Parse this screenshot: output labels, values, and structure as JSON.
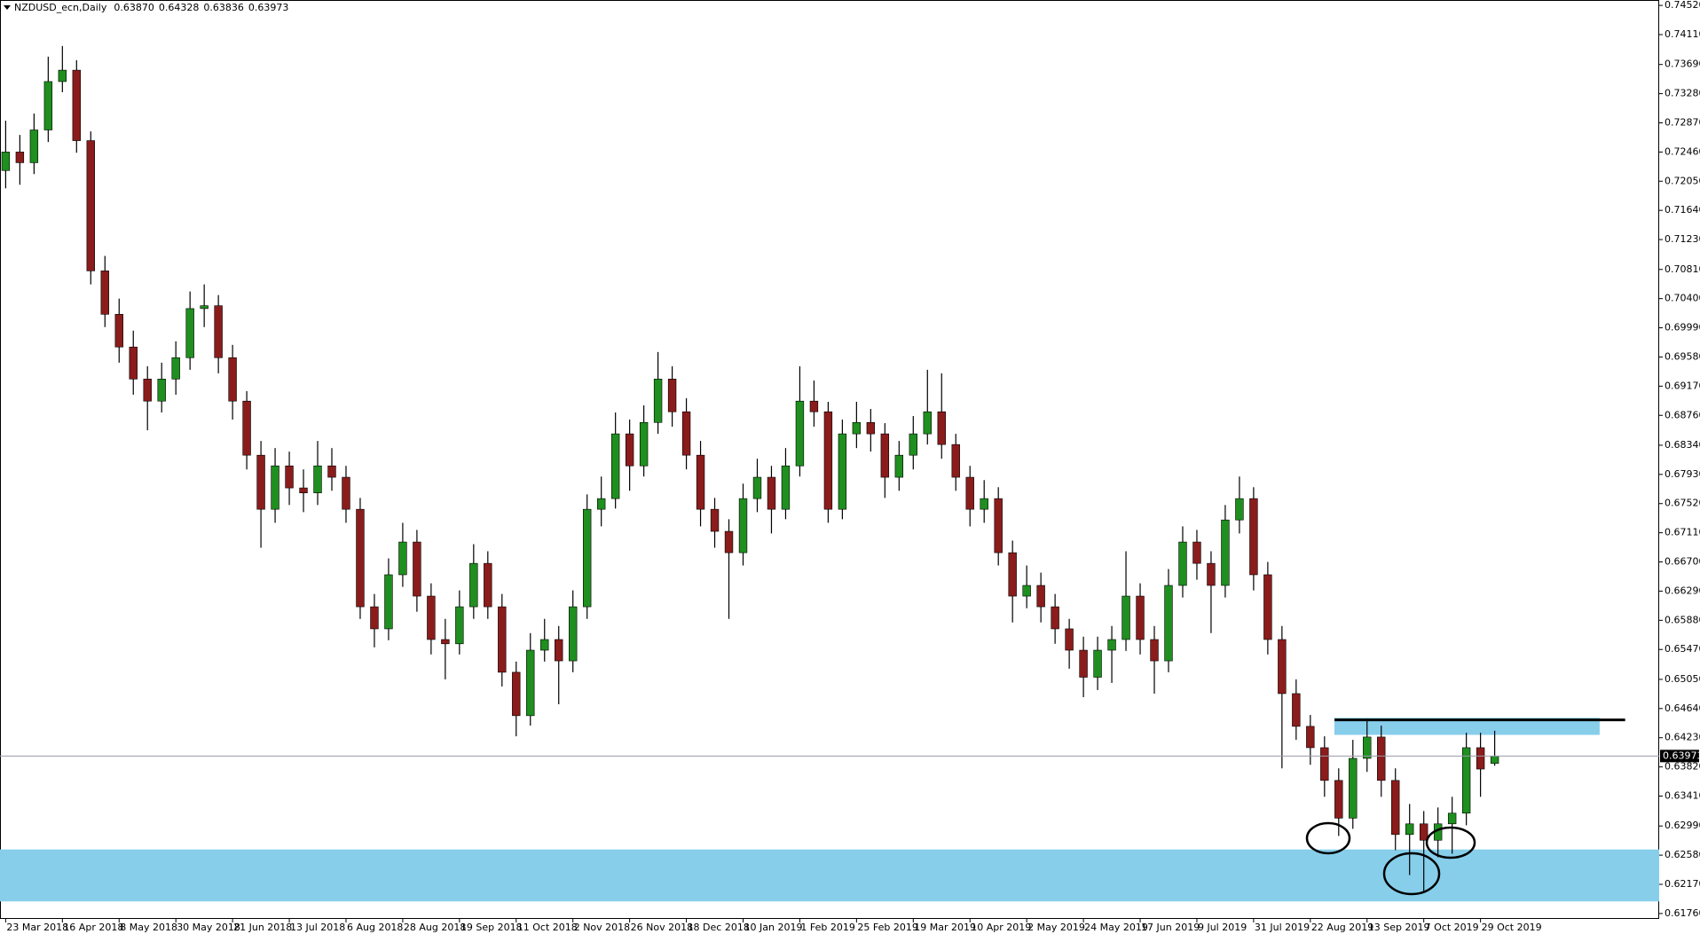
{
  "chart_data": {
    "type": "candlestick",
    "title": "NZDUSD_ecn,Daily",
    "last_quote": [
      {
        "value": 0.6387,
        "label": "0.63870"
      },
      {
        "value": 0.64328,
        "label": "0.64328"
      },
      {
        "value": 0.63836,
        "label": "0.63836"
      },
      {
        "value": 0.63973,
        "label": "0.63973"
      }
    ],
    "up_color": "#1f8f1f",
    "down_color": "#8b1c1c",
    "wick_color": "#000000",
    "xlim": [
      -0.4,
      116.6
    ],
    "ylim": [
      0.61684,
      0.74596
    ],
    "xticks": [
      {
        "value": 0,
        "label": "23 Mar 2018"
      },
      {
        "value": 4,
        "label": "16 Apr 2018"
      },
      {
        "value": 8,
        "label": "8 May 2018"
      },
      {
        "value": 12,
        "label": "30 May 2018"
      },
      {
        "value": 16,
        "label": "21 Jun 2018"
      },
      {
        "value": 20,
        "label": "13 Jul 2018"
      },
      {
        "value": 24,
        "label": "6 Aug 2018"
      },
      {
        "value": 28,
        "label": "28 Aug 2018"
      },
      {
        "value": 32,
        "label": "19 Sep 2018"
      },
      {
        "value": 36,
        "label": "11 Oct 2018"
      },
      {
        "value": 40,
        "label": "2 Nov 2018"
      },
      {
        "value": 44,
        "label": "26 Nov 2018"
      },
      {
        "value": 48,
        "label": "18 Dec 2018"
      },
      {
        "value": 52,
        "label": "10 Jan 2019"
      },
      {
        "value": 56,
        "label": "1 Feb 2019"
      },
      {
        "value": 60,
        "label": "25 Feb 2019"
      },
      {
        "value": 64,
        "label": "19 Mar 2019"
      },
      {
        "value": 68,
        "label": "10 Apr 2019"
      },
      {
        "value": 72,
        "label": "2 May 2019"
      },
      {
        "value": 76,
        "label": "24 May 2019"
      },
      {
        "value": 80,
        "label": "17 Jun 2019"
      },
      {
        "value": 84,
        "label": "9 Jul 2019"
      },
      {
        "value": 88,
        "label": "31 Jul 2019"
      },
      {
        "value": 92,
        "label": "22 Aug 2019"
      },
      {
        "value": 96,
        "label": "13 Sep 2019"
      },
      {
        "value": 100,
        "label": "7 Oct 2019"
      },
      {
        "value": 104,
        "label": "29 Oct 2019"
      }
    ],
    "yticks": [
      {
        "value": 0.7452,
        "label": "0.74520"
      },
      {
        "value": 0.7411,
        "label": "0.74110"
      },
      {
        "value": 0.7369,
        "label": "0.73690"
      },
      {
        "value": 0.7328,
        "label": "0.73280"
      },
      {
        "value": 0.7287,
        "label": "0.72870"
      },
      {
        "value": 0.7246,
        "label": "0.72460"
      },
      {
        "value": 0.7205,
        "label": "0.72050"
      },
      {
        "value": 0.7164,
        "label": "0.71640"
      },
      {
        "value": 0.7123,
        "label": "0.71230"
      },
      {
        "value": 0.7081,
        "label": "0.70810"
      },
      {
        "value": 0.704,
        "label": "0.70400"
      },
      {
        "value": 0.6999,
        "label": "0.69990"
      },
      {
        "value": 0.6958,
        "label": "0.69580"
      },
      {
        "value": 0.6917,
        "label": "0.69170"
      },
      {
        "value": 0.6876,
        "label": "0.68760"
      },
      {
        "value": 0.6834,
        "label": "0.68340"
      },
      {
        "value": 0.6793,
        "label": "0.67930"
      },
      {
        "value": 0.6752,
        "label": "0.67520"
      },
      {
        "value": 0.6711,
        "label": "0.67110"
      },
      {
        "value": 0.667,
        "label": "0.66700"
      },
      {
        "value": 0.6629,
        "label": "0.66290"
      },
      {
        "value": 0.6588,
        "label": "0.65880"
      },
      {
        "value": 0.6547,
        "label": "0.65470"
      },
      {
        "value": 0.6505,
        "label": "0.65050"
      },
      {
        "value": 0.6464,
        "label": "0.64640"
      },
      {
        "value": 0.6423,
        "label": "0.64230"
      },
      {
        "value": 0.6382,
        "label": "0.63820"
      },
      {
        "value": 0.6341,
        "label": "0.63410"
      },
      {
        "value": 0.6299,
        "label": "0.62990"
      },
      {
        "value": 0.6258,
        "label": "0.62580"
      },
      {
        "value": 0.6217,
        "label": "0.62170"
      },
      {
        "value": 0.6176,
        "label": "0.61760"
      }
    ],
    "zones": [
      {
        "x": [
          93.7,
          112.4
        ],
        "y": [
          0.6427,
          0.6451
        ],
        "color": "#87ceeb"
      },
      {
        "x": [
          -0.4,
          116.6
        ],
        "y": [
          0.6193,
          0.6266
        ],
        "color": "#87ceeb"
      }
    ],
    "lines": [
      {
        "x": [
          93.7,
          114.2
        ],
        "y": 0.6448,
        "color": "#000000"
      }
    ],
    "candles": [
      [
        0.722,
        0.729,
        0.7195,
        0.7246
      ],
      [
        0.7246,
        0.727,
        0.72,
        0.7231
      ],
      [
        0.7231,
        0.73,
        0.7215,
        0.7277
      ],
      [
        0.7277,
        0.738,
        0.726,
        0.7345
      ],
      [
        0.7345,
        0.7395,
        0.733,
        0.7361
      ],
      [
        0.7361,
        0.7375,
        0.7245,
        0.7262
      ],
      [
        0.7262,
        0.7275,
        0.706,
        0.7079
      ],
      [
        0.7079,
        0.71,
        0.7,
        0.7018
      ],
      [
        0.7018,
        0.704,
        0.695,
        0.6972
      ],
      [
        0.6972,
        0.6995,
        0.6905,
        0.6927
      ],
      [
        0.6927,
        0.6945,
        0.6855,
        0.6896
      ],
      [
        0.6896,
        0.695,
        0.688,
        0.6927
      ],
      [
        0.6927,
        0.698,
        0.6905,
        0.6957
      ],
      [
        0.6957,
        0.705,
        0.694,
        0.7026
      ],
      [
        0.7026,
        0.706,
        0.7,
        0.703
      ],
      [
        0.703,
        0.7045,
        0.6935,
        0.6957
      ],
      [
        0.6957,
        0.6975,
        0.687,
        0.6896
      ],
      [
        0.6896,
        0.691,
        0.68,
        0.682
      ],
      [
        0.682,
        0.684,
        0.669,
        0.6744
      ],
      [
        0.6744,
        0.683,
        0.6725,
        0.6805
      ],
      [
        0.6805,
        0.6825,
        0.675,
        0.6774
      ],
      [
        0.6774,
        0.68,
        0.674,
        0.6767
      ],
      [
        0.6767,
        0.684,
        0.675,
        0.6805
      ],
      [
        0.6805,
        0.683,
        0.677,
        0.6789
      ],
      [
        0.6789,
        0.6805,
        0.6725,
        0.6744
      ],
      [
        0.6744,
        0.676,
        0.659,
        0.6607
      ],
      [
        0.6607,
        0.6625,
        0.655,
        0.6576
      ],
      [
        0.6576,
        0.6675,
        0.656,
        0.6652
      ],
      [
        0.6652,
        0.6725,
        0.6635,
        0.6698
      ],
      [
        0.6698,
        0.6715,
        0.66,
        0.6622
      ],
      [
        0.6622,
        0.664,
        0.654,
        0.6561
      ],
      [
        0.6561,
        0.659,
        0.6505,
        0.6555
      ],
      [
        0.6555,
        0.663,
        0.654,
        0.6607
      ],
      [
        0.6607,
        0.6695,
        0.659,
        0.6668
      ],
      [
        0.6668,
        0.6685,
        0.659,
        0.6607
      ],
      [
        0.6607,
        0.6625,
        0.6495,
        0.6515
      ],
      [
        0.6515,
        0.653,
        0.6425,
        0.6454
      ],
      [
        0.6454,
        0.657,
        0.644,
        0.6546
      ],
      [
        0.6546,
        0.659,
        0.653,
        0.6561
      ],
      [
        0.6561,
        0.658,
        0.647,
        0.6531
      ],
      [
        0.6531,
        0.663,
        0.6515,
        0.6607
      ],
      [
        0.6607,
        0.6765,
        0.659,
        0.6744
      ],
      [
        0.6744,
        0.679,
        0.672,
        0.6759
      ],
      [
        0.6759,
        0.688,
        0.6745,
        0.685
      ],
      [
        0.685,
        0.687,
        0.677,
        0.6805
      ],
      [
        0.6805,
        0.689,
        0.679,
        0.6866
      ],
      [
        0.6866,
        0.6965,
        0.685,
        0.6927
      ],
      [
        0.6927,
        0.6945,
        0.686,
        0.6881
      ],
      [
        0.6881,
        0.69,
        0.68,
        0.682
      ],
      [
        0.682,
        0.684,
        0.672,
        0.6744
      ],
      [
        0.6744,
        0.676,
        0.669,
        0.6713
      ],
      [
        0.6713,
        0.673,
        0.659,
        0.6683
      ],
      [
        0.6683,
        0.678,
        0.6665,
        0.6759
      ],
      [
        0.6759,
        0.6815,
        0.674,
        0.6789
      ],
      [
        0.6789,
        0.6805,
        0.671,
        0.6744
      ],
      [
        0.6744,
        0.683,
        0.673,
        0.6805
      ],
      [
        0.6805,
        0.6945,
        0.679,
        0.6896
      ],
      [
        0.6896,
        0.6925,
        0.686,
        0.6881
      ],
      [
        0.6881,
        0.6895,
        0.6725,
        0.6744
      ],
      [
        0.6744,
        0.687,
        0.673,
        0.685
      ],
      [
        0.685,
        0.6895,
        0.683,
        0.6866
      ],
      [
        0.6866,
        0.6885,
        0.6825,
        0.685
      ],
      [
        0.685,
        0.6865,
        0.676,
        0.6789
      ],
      [
        0.6789,
        0.684,
        0.677,
        0.682
      ],
      [
        0.682,
        0.6875,
        0.68,
        0.685
      ],
      [
        0.685,
        0.694,
        0.6835,
        0.6881
      ],
      [
        0.6881,
        0.6935,
        0.6815,
        0.6835
      ],
      [
        0.6835,
        0.685,
        0.677,
        0.6789
      ],
      [
        0.6789,
        0.6805,
        0.672,
        0.6744
      ],
      [
        0.6744,
        0.6785,
        0.6725,
        0.6759
      ],
      [
        0.6759,
        0.6775,
        0.6665,
        0.6683
      ],
      [
        0.6683,
        0.67,
        0.6585,
        0.6622
      ],
      [
        0.6622,
        0.6665,
        0.6605,
        0.6637
      ],
      [
        0.6637,
        0.6655,
        0.6585,
        0.6607
      ],
      [
        0.6607,
        0.6625,
        0.6555,
        0.6576
      ],
      [
        0.6576,
        0.659,
        0.652,
        0.6546
      ],
      [
        0.6546,
        0.6565,
        0.648,
        0.6508
      ],
      [
        0.6508,
        0.6565,
        0.649,
        0.6546
      ],
      [
        0.6546,
        0.658,
        0.65,
        0.6561
      ],
      [
        0.6561,
        0.6685,
        0.6545,
        0.6622
      ],
      [
        0.6622,
        0.664,
        0.654,
        0.6561
      ],
      [
        0.6561,
        0.658,
        0.6485,
        0.6531
      ],
      [
        0.6531,
        0.666,
        0.6515,
        0.6637
      ],
      [
        0.6637,
        0.672,
        0.662,
        0.6698
      ],
      [
        0.6698,
        0.6715,
        0.6645,
        0.6668
      ],
      [
        0.6668,
        0.6685,
        0.657,
        0.6637
      ],
      [
        0.6637,
        0.675,
        0.662,
        0.6729
      ],
      [
        0.6729,
        0.679,
        0.671,
        0.6759
      ],
      [
        0.6759,
        0.6775,
        0.663,
        0.6652
      ],
      [
        0.6652,
        0.667,
        0.654,
        0.6561
      ],
      [
        0.6561,
        0.658,
        0.638,
        0.6485
      ],
      [
        0.6485,
        0.6505,
        0.642,
        0.6439
      ],
      [
        0.6439,
        0.6455,
        0.6385,
        0.6409
      ],
      [
        0.6409,
        0.6425,
        0.634,
        0.6363
      ],
      [
        0.6363,
        0.638,
        0.6285,
        0.631
      ],
      [
        0.631,
        0.642,
        0.6295,
        0.6394
      ],
      [
        0.6394,
        0.645,
        0.6375,
        0.6424
      ],
      [
        0.6424,
        0.644,
        0.634,
        0.6363
      ],
      [
        0.6363,
        0.638,
        0.6265,
        0.6287
      ],
      [
        0.6287,
        0.633,
        0.623,
        0.6302
      ],
      [
        0.6302,
        0.632,
        0.6205,
        0.6279
      ],
      [
        0.6279,
        0.6325,
        0.6255,
        0.6302
      ],
      [
        0.6302,
        0.634,
        0.626,
        0.6317
      ],
      [
        0.6317,
        0.643,
        0.63,
        0.6409
      ],
      [
        0.6409,
        0.643,
        0.634,
        0.6379
      ],
      [
        0.6387,
        0.64328,
        0.63836,
        0.63973
      ]
    ]
  }
}
